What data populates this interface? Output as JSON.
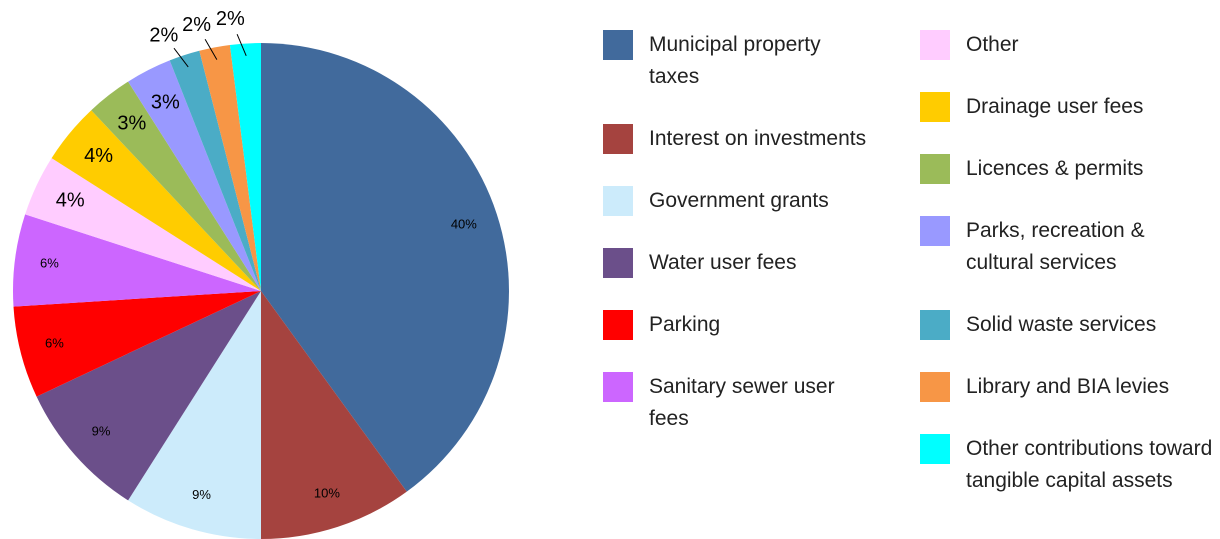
{
  "chart_data": {
    "type": "pie",
    "categories": [
      "Municipal property taxes",
      "Interest on investments",
      "Government grants",
      "Water user fees",
      "Parking",
      "Sanitary sewer user fees",
      "Other",
      "Drainage user fees",
      "Licences & permits",
      "Parks, recreation & cultural services",
      "Solid waste services",
      "Library and BIA levies",
      "Other contributions toward tangible capital assets"
    ],
    "values": [
      40,
      10,
      9,
      9,
      6,
      6,
      4,
      4,
      3,
      3,
      2,
      2,
      2
    ],
    "value_labels": [
      "40%",
      "10%",
      "9%",
      "9%",
      "6%",
      "6%",
      "4%",
      "4%",
      "3%",
      "3%",
      "2%",
      "2%",
      "2%"
    ],
    "colors": [
      "#416a9c",
      "#a5433f",
      "#ccebfb",
      "#6b4f8a",
      "#ff0000",
      "#cc66ff",
      "#ffccff",
      "#ffcc00",
      "#9bbb59",
      "#9999ff",
      "#4bacc6",
      "#f79646",
      "#00ffff"
    ],
    "legend": "right"
  }
}
